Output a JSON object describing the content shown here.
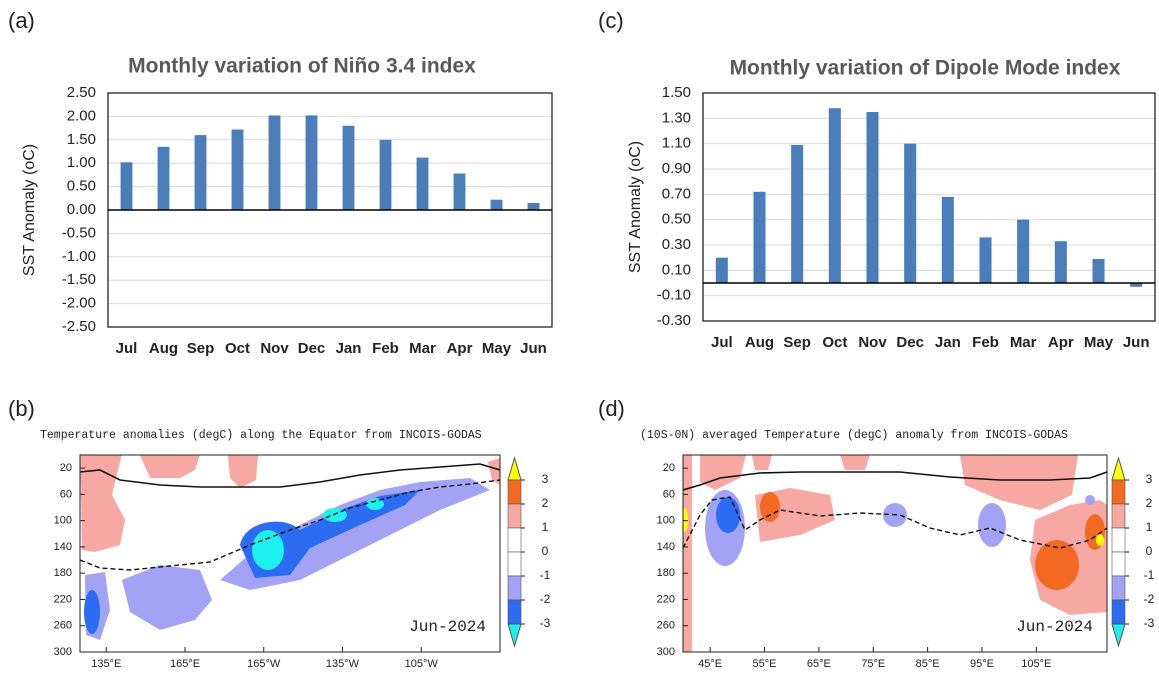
{
  "chart_data": [
    {
      "type": "bar",
      "panel_label": "(a)",
      "title": "Monthly variation of Niño 3.4 index",
      "ylabel": "SST Anomaly (oC)",
      "categories": [
        "Jul",
        "Aug",
        "Sep",
        "Oct",
        "Nov",
        "Dec",
        "Jan",
        "Feb",
        "Mar",
        "Apr",
        "May",
        "Jun"
      ],
      "values": [
        1.02,
        1.35,
        1.6,
        1.72,
        2.02,
        2.02,
        1.8,
        1.5,
        1.12,
        0.78,
        0.22,
        0.15
      ],
      "color": "#4a7ebb",
      "grid": true,
      "ylim": [
        -2.5,
        2.5
      ],
      "yticks": [
        {
          "value": -2.5,
          "label": "-2.50"
        },
        {
          "value": -2,
          "label": "-2.00"
        },
        {
          "value": -1.5,
          "label": "-1.50"
        },
        {
          "value": -1,
          "label": "-1.00"
        },
        {
          "value": -0.5,
          "label": "-0.50"
        },
        {
          "value": 0,
          "label": "0.00"
        },
        {
          "value": 0.5,
          "label": "0.50"
        },
        {
          "value": 1,
          "label": "1.00"
        },
        {
          "value": 1.5,
          "label": "1.50"
        },
        {
          "value": 2,
          "label": "2.00"
        },
        {
          "value": 2.5,
          "label": "2.50"
        }
      ]
    },
    {
      "type": "contour",
      "panel_label": "(b)",
      "title": "Temperature anomalies (degC) along the Equator from INCOIS-GODAS",
      "annotation": "Jun-2024",
      "xlim": [
        125,
        285
      ],
      "xticks": [
        {
          "value": 135,
          "label": "135°E"
        },
        {
          "value": 165,
          "label": "165°E"
        },
        {
          "value": 195,
          "label": "165°W"
        },
        {
          "value": 225,
          "label": "135°W"
        },
        {
          "value": 255,
          "label": "105°W"
        }
      ],
      "ylim": [
        0,
        300
      ],
      "y_reversed": true,
      "yticks": [
        20,
        60,
        100,
        140,
        180,
        220,
        260,
        300
      ],
      "colorbar": {
        "ticks": [
          3,
          2,
          1,
          0,
          -1,
          -2,
          -3
        ],
        "colors": [
          "#ffff00",
          "#f26a21",
          "#f7a8a3",
          "#ffffff",
          "#ffffff",
          "#a3a3f5",
          "#2b6cf2",
          "#1ef0f0"
        ]
      }
    },
    {
      "type": "bar",
      "panel_label": "(c)",
      "title": "Monthly variation of Dipole Mode index",
      "ylabel": "SST Anomaly (oC)",
      "categories": [
        "Jul",
        "Aug",
        "Sep",
        "Oct",
        "Nov",
        "Dec",
        "Jan",
        "Feb",
        "Mar",
        "Apr",
        "May",
        "Jun"
      ],
      "values": [
        0.2,
        0.72,
        1.09,
        1.38,
        1.35,
        1.1,
        0.68,
        0.36,
        0.5,
        0.33,
        0.19,
        -0.03
      ],
      "color": "#4a7ebb",
      "grid": true,
      "ylim": [
        -0.3,
        1.5
      ],
      "yticks": [
        {
          "value": -0.3,
          "label": "-0.30"
        },
        {
          "value": -0.1,
          "label": "-0.10"
        },
        {
          "value": 0.1,
          "label": "0.10"
        },
        {
          "value": 0.3,
          "label": "0.30"
        },
        {
          "value": 0.5,
          "label": "0.50"
        },
        {
          "value": 0.7,
          "label": "0.70"
        },
        {
          "value": 0.9,
          "label": "0.90"
        },
        {
          "value": 1.1,
          "label": "1.10"
        },
        {
          "value": 1.3,
          "label": "1.30"
        },
        {
          "value": 1.5,
          "label": "1.50"
        }
      ]
    },
    {
      "type": "contour",
      "panel_label": "(d)",
      "title": "(10S-0N) averaged Temperature (degC) anomaly from INCOIS-GODAS",
      "annotation": "Jun-2024",
      "xlim": [
        40,
        118
      ],
      "xticks": [
        {
          "value": 45,
          "label": "45°E"
        },
        {
          "value": 55,
          "label": "55°E"
        },
        {
          "value": 65,
          "label": "65°E"
        },
        {
          "value": 75,
          "label": "75°E"
        },
        {
          "value": 85,
          "label": "85°E"
        },
        {
          "value": 95,
          "label": "95°E"
        },
        {
          "value": 105,
          "label": "105°E"
        }
      ],
      "ylim": [
        0,
        300
      ],
      "y_reversed": true,
      "yticks": [
        20,
        60,
        100,
        140,
        180,
        220,
        260,
        300
      ],
      "colorbar": {
        "ticks": [
          3,
          2,
          1,
          0,
          -1,
          -2,
          -3
        ],
        "colors": [
          "#ffff00",
          "#f26a21",
          "#f7a8a3",
          "#ffffff",
          "#ffffff",
          "#a3a3f5",
          "#2b6cf2",
          "#1ef0f0"
        ]
      }
    }
  ]
}
